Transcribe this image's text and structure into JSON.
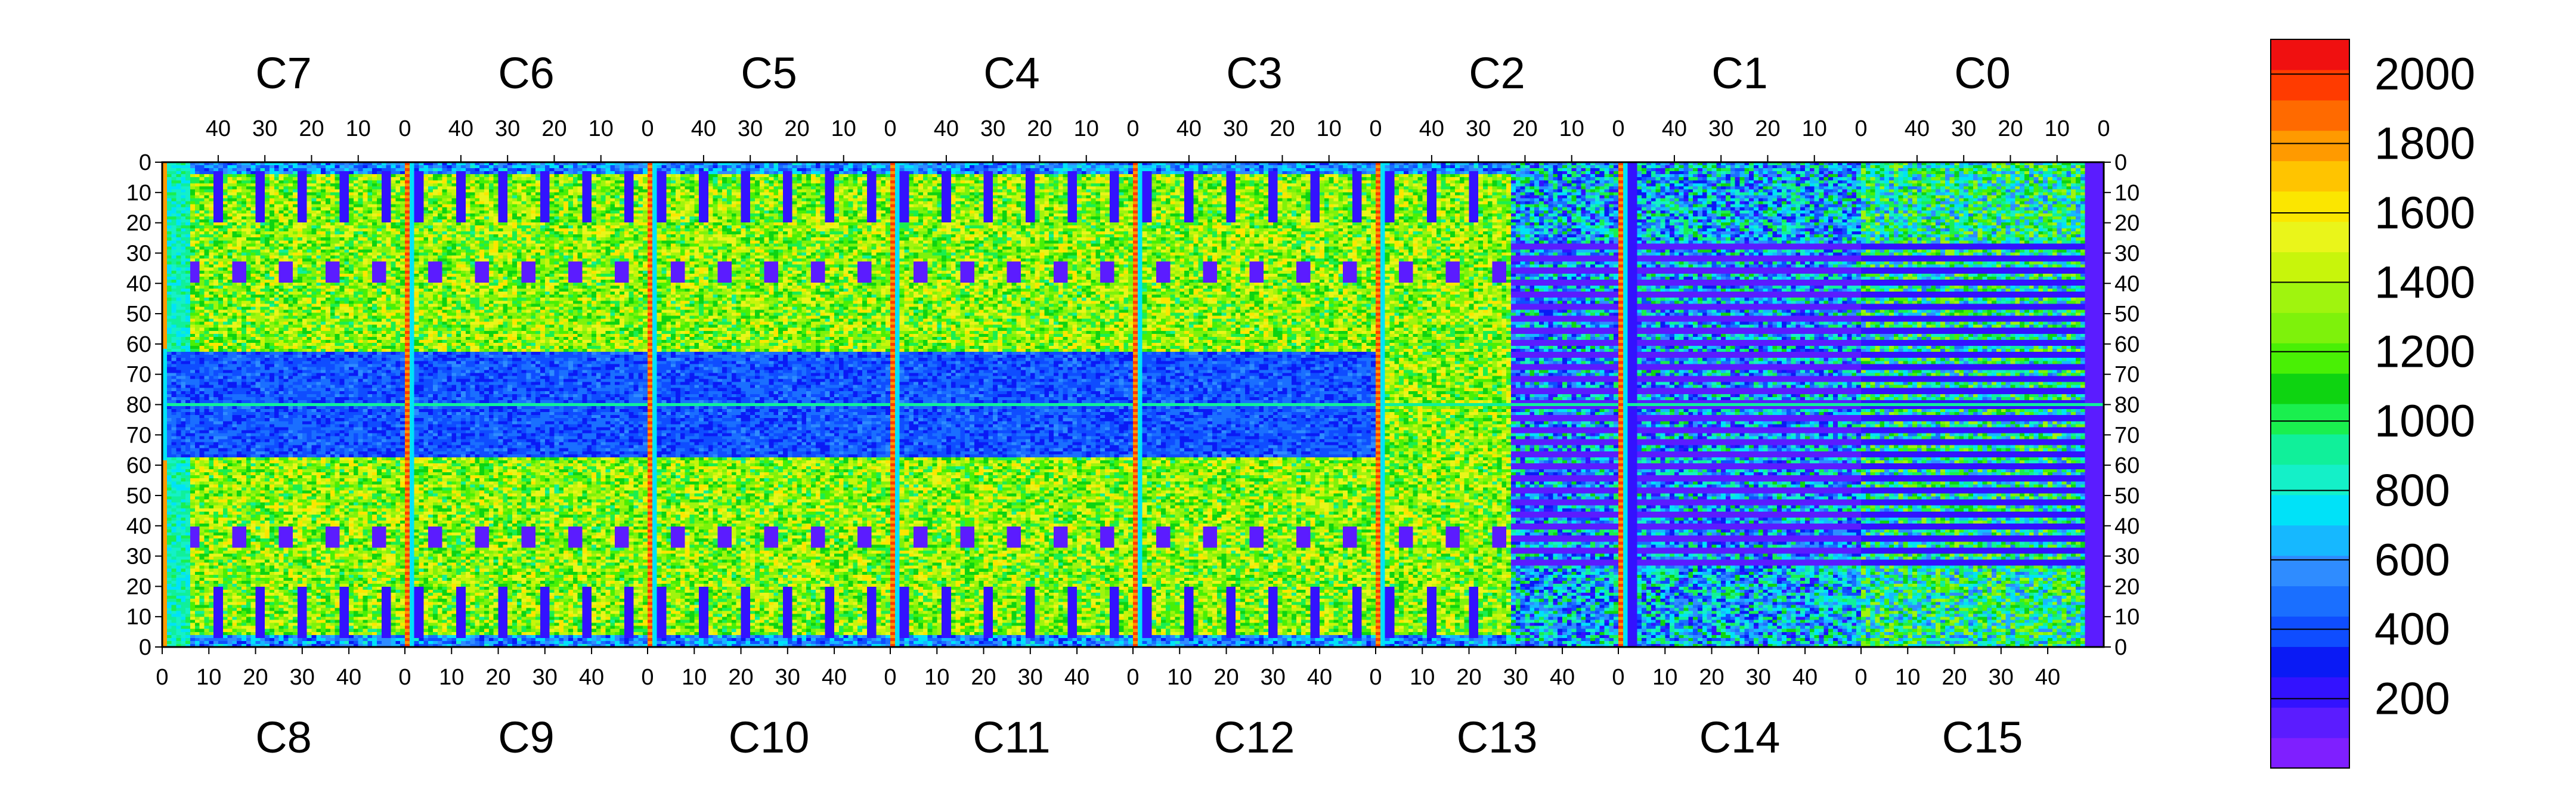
{
  "chart_data": {
    "type": "heatmap",
    "title": "",
    "xlabel": "",
    "ylabel": "",
    "chips_top": [
      "C7",
      "C6",
      "C5",
      "C4",
      "C3",
      "C2",
      "C1",
      "C0"
    ],
    "chips_bottom": [
      "C8",
      "C9",
      "C10",
      "C11",
      "C12",
      "C13",
      "C14",
      "C15"
    ],
    "columns_per_chip": 52,
    "rows_per_half": 80,
    "top_x_ticks": [
      "40",
      "30",
      "20",
      "10",
      "0"
    ],
    "bottom_x_ticks": [
      "0",
      "10",
      "20",
      "30",
      "40"
    ],
    "y_ticks": [
      "0",
      "10",
      "20",
      "30",
      "40",
      "50",
      "60",
      "70",
      "80",
      "70",
      "60",
      "50",
      "40",
      "30",
      "20",
      "10",
      "0"
    ],
    "z_range": [
      0,
      2100
    ],
    "colorbar_ticks": [
      "2000",
      "1800",
      "1600",
      "1400",
      "1200",
      "1000",
      "800",
      "600",
      "400",
      "200"
    ],
    "colorbar_tick_values": [
      2000,
      1800,
      1600,
      1400,
      1200,
      1000,
      800,
      600,
      400,
      200
    ],
    "palette": [
      "#7f1fff",
      "#5b1cff",
      "#3312ff",
      "#0a1af5",
      "#0f4dff",
      "#1a6fff",
      "#2f8cff",
      "#16b8ff",
      "#00e2f8",
      "#14f0c8",
      "#10f09a",
      "#1aef4e",
      "#0ed411",
      "#49f005",
      "#7ef20b",
      "#a0f40e",
      "#c8f50b",
      "#eaf51a",
      "#fbe600",
      "#ffc400",
      "#ff9a00",
      "#ff6a00",
      "#ff3b00",
      "#f01010"
    ],
    "chip_mean_levels": [
      1300,
      1300,
      1300,
      1300,
      1300,
      1300,
      420,
      900
    ],
    "hot_columns": "column 0 of each chip boundary shows values near 2000 (red)",
    "cold_blocks": "dark blue/purple regions (~150) at bonding/pad areas and large low-occupancy areas in C1/C13/C14",
    "grid": false,
    "legend": "colorbar-right"
  }
}
